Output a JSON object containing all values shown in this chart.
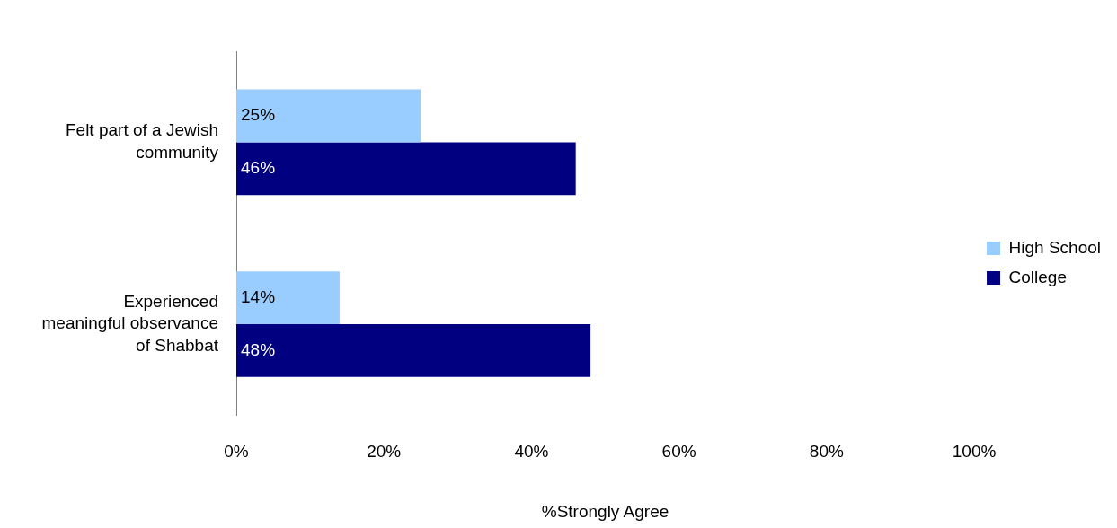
{
  "chart_data": {
    "type": "bar",
    "orientation": "horizontal",
    "xlabel": "%Strongly Agree",
    "categories": [
      "Felt part of a Jewish community",
      "Experienced meaningful observance of Shabbat"
    ],
    "series": [
      {
        "name": "High School",
        "color": "#99ccff",
        "values": [
          25,
          14
        ],
        "value_labels": [
          "25%",
          "14%"
        ]
      },
      {
        "name": "College",
        "color": "#000080",
        "values": [
          46,
          48
        ],
        "value_labels": [
          "46%",
          "48%"
        ]
      }
    ],
    "xlim": [
      0,
      100
    ],
    "xticks": [
      {
        "value": 0,
        "label": "0%"
      },
      {
        "value": 20,
        "label": "20%"
      },
      {
        "value": 40,
        "label": "40%"
      },
      {
        "value": 60,
        "label": "60%"
      },
      {
        "value": 80,
        "label": "80%"
      },
      {
        "value": 100,
        "label": "100%"
      }
    ],
    "grid": false,
    "legend": "right"
  }
}
